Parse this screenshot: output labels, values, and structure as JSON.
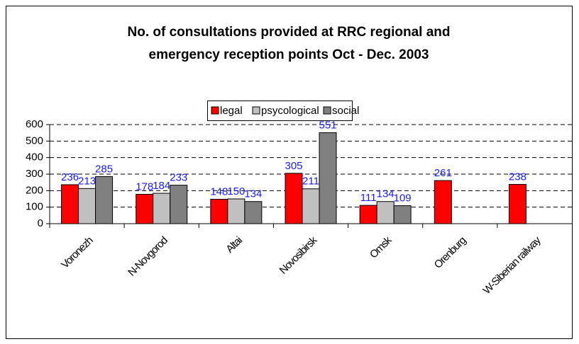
{
  "chart_data": {
    "type": "bar",
    "title": [
      "No. of consultations provided at RRC regional and",
      "emergency reception points Oct - Dec. 2003"
    ],
    "categories": [
      "Voronezh",
      "N-Novgorod",
      "Altai",
      "Novosibirsk",
      "Omsk",
      "Orenburg",
      "W-Siberian railway"
    ],
    "series": [
      {
        "name": "legal",
        "color": "#ff0000",
        "values": [
          236,
          178,
          148,
          305,
          111,
          261,
          238
        ]
      },
      {
        "name": "psycological",
        "color": "#c0c0c0",
        "values": [
          213,
          184,
          150,
          211,
          134,
          null,
          null
        ]
      },
      {
        "name": "social",
        "color": "#808080",
        "values": [
          285,
          233,
          134,
          551,
          109,
          null,
          null
        ]
      }
    ],
    "ylim": [
      0,
      600
    ],
    "yticks": [
      0,
      100,
      200,
      300,
      400,
      500,
      600
    ],
    "grid": true,
    "legend": "top"
  }
}
